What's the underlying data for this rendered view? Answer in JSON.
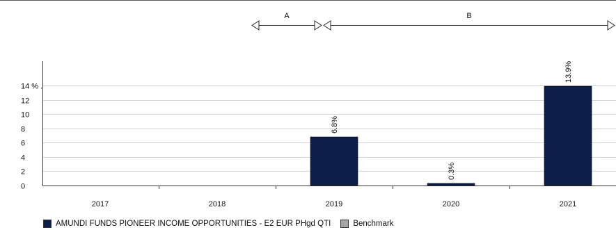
{
  "colors": {
    "fund": "#0c1f4b",
    "benchmark": "#a6a6a6",
    "grid": "#d4d4d4",
    "axis": "#333333"
  },
  "periods": [
    {
      "label": "A",
      "from_year": "2018/2019",
      "to_year": "2019"
    },
    {
      "label": "B",
      "from_year": "2019",
      "to_year": "2021"
    }
  ],
  "legend": {
    "fund": "AMUNDI FUNDS PIONEER INCOME OPPORTUNITIES - E2 EUR PHgd QTI",
    "benchmark": "Benchmark"
  },
  "chart_data": {
    "type": "bar",
    "title": "",
    "xlabel": "",
    "ylabel": "",
    "categories": [
      "2017",
      "2018",
      "2019",
      "2020",
      "2021"
    ],
    "series": [
      {
        "name": "AMUNDI FUNDS PIONEER INCOME OPPORTUNITIES - E2 EUR PHgd QTI",
        "values": [
          null,
          null,
          6.8,
          0.3,
          13.9
        ],
        "labels": [
          null,
          null,
          "6.8%",
          "0.3%",
          "13.9%"
        ]
      },
      {
        "name": "Benchmark",
        "values": [
          null,
          null,
          null,
          null,
          null
        ]
      }
    ],
    "ylim": [
      0,
      14
    ],
    "yticks": [
      0,
      2,
      4,
      6,
      8,
      10,
      12,
      14
    ],
    "ytick_labels": [
      "0",
      "2",
      "4",
      "6",
      "8",
      "10",
      "12",
      "14 % ."
    ],
    "grid": true,
    "legend_position": "bottom"
  }
}
